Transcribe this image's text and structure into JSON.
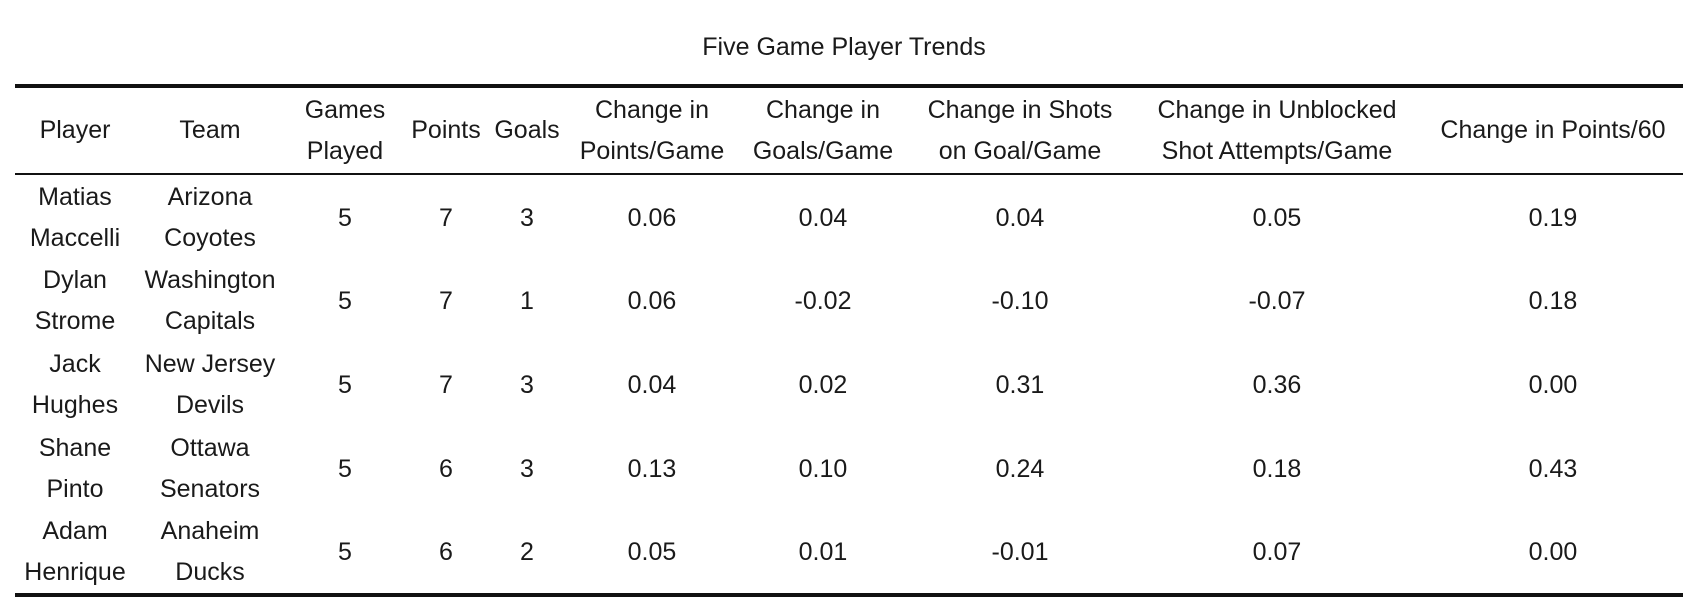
{
  "chart_data": {
    "type": "table",
    "title": "Five Game Player Trends",
    "columns": [
      "Player",
      "Team",
      "Games Played",
      "Points",
      "Goals",
      "Change in Points/Game",
      "Change in Goals/Game",
      "Change in Shots on Goal/Game",
      "Change in Unblocked Shot Attempts/Game",
      "Change in Points/60"
    ],
    "rows": [
      [
        "Matias Maccelli",
        "Arizona Coyotes",
        "5",
        "7",
        "3",
        "0.06",
        "0.04",
        "0.04",
        "0.05",
        "0.19"
      ],
      [
        "Dylan Strome",
        "Washington Capitals",
        "5",
        "7",
        "1",
        "0.06",
        "-0.02",
        "-0.10",
        "-0.07",
        "0.18"
      ],
      [
        "Jack Hughes",
        "New Jersey Devils",
        "5",
        "7",
        "3",
        "0.04",
        "0.02",
        "0.31",
        "0.36",
        "0.00"
      ],
      [
        "Shane Pinto",
        "Ottawa Senators",
        "5",
        "6",
        "3",
        "0.13",
        "0.10",
        "0.24",
        "0.18",
        "0.43"
      ],
      [
        "Adam Henrique",
        "Anaheim Ducks",
        "5",
        "6",
        "2",
        "0.05",
        "0.01",
        "-0.01",
        "0.07",
        "0.00"
      ]
    ]
  }
}
